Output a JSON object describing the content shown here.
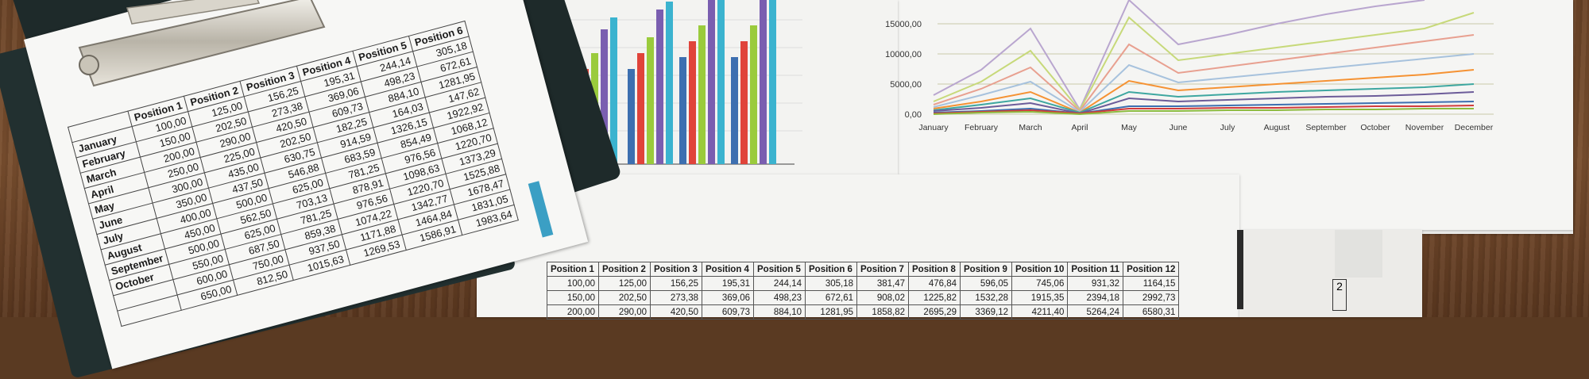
{
  "line_chart": {
    "y_ticks": [
      "0,00",
      "5000,00",
      "10000,00",
      "15000,00"
    ],
    "months": [
      "January",
      "February",
      "March",
      "April",
      "May",
      "June",
      "July",
      "August",
      "September",
      "October",
      "November",
      "December"
    ]
  },
  "bottom_table": {
    "headers": [
      "Position 1",
      "Position 2",
      "Position 3",
      "Position 4",
      "Position 5",
      "Position 6",
      "Position 7",
      "Position 8",
      "Position 9",
      "Position 10",
      "Position 11",
      "Position 12"
    ],
    "rows": [
      [
        "100,00",
        "125,00",
        "156,25",
        "195,31",
        "244,14",
        "305,18",
        "381,47",
        "476,84",
        "596,05",
        "745,06",
        "931,32",
        "1164,15"
      ],
      [
        "150,00",
        "202,50",
        "273,38",
        "369,06",
        "498,23",
        "672,61",
        "908,02",
        "1225,82",
        "1532,28",
        "1915,35",
        "2394,18",
        "2992,73"
      ],
      [
        "200,00",
        "290,00",
        "420,50",
        "609,73",
        "884,10",
        "1281,95",
        "1858,82",
        "2695,29",
        "3369,12",
        "4211,40",
        "5264,24",
        "6580,31"
      ]
    ]
  },
  "ledger": {
    "headers": [
      "",
      "Position 1",
      "Position 2",
      "Position 3",
      "Position 4",
      "Position 5",
      "Position 6"
    ],
    "rows": [
      [
        "January",
        "100,00",
        "125,00",
        "156,25",
        "195,31",
        "244,14",
        "305,18"
      ],
      [
        "February",
        "150,00",
        "202,50",
        "273,38",
        "369,06",
        "498,23",
        "672,61"
      ],
      [
        "March",
        "200,00",
        "290,00",
        "420,50",
        "609,73",
        "884,10",
        "1281,95"
      ],
      [
        "April",
        "250,00",
        "225,00",
        "202,50",
        "182,25",
        "164,03",
        "147,62"
      ],
      [
        "May",
        "300,00",
        "435,00",
        "630,75",
        "914,59",
        "1326,15",
        "1922,92"
      ],
      [
        "June",
        "350,00",
        "437,50",
        "546,88",
        "683,59",
        "854,49",
        "1068,12"
      ],
      [
        "July",
        "400,00",
        "500,00",
        "625,00",
        "781,25",
        "976,56",
        "1220,70"
      ],
      [
        "August",
        "450,00",
        "562,50",
        "703,13",
        "878,91",
        "1098,63",
        "1373,29"
      ],
      [
        "September",
        "500,00",
        "625,00",
        "781,25",
        "976,56",
        "1220,70",
        "1525,88"
      ],
      [
        "October",
        "550,00",
        "687,50",
        "859,38",
        "1074,22",
        "1342,77",
        "1678,47"
      ],
      [
        "",
        "600,00",
        "750,00",
        "937,50",
        "1171,88",
        "1464,84",
        "1831,05"
      ],
      [
        "",
        "650,00",
        "812,50",
        "1015,63",
        "1269,53",
        "1586,91",
        "1983,64"
      ]
    ]
  },
  "side_number": "2"
}
